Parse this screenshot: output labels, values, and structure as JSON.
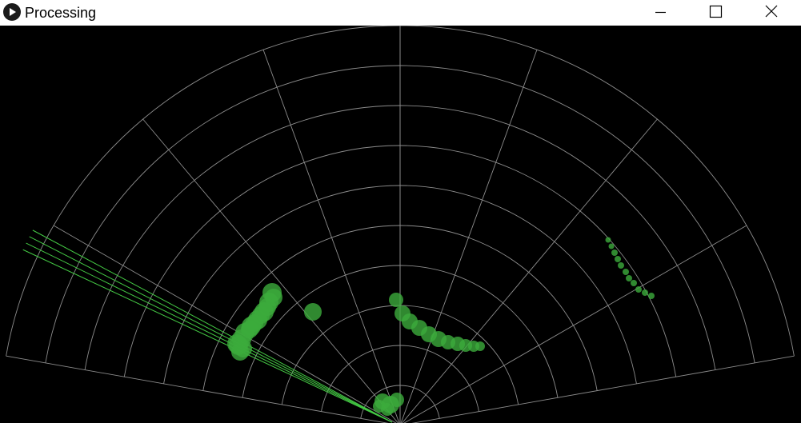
{
  "window": {
    "title": "Processing",
    "app_icon": "play-icon",
    "controls": [
      "minimize-icon",
      "maximize-icon",
      "close-icon"
    ]
  },
  "radar": {
    "background": "#000000",
    "grid_color": "#8c8c8c",
    "sweep_color": "#44c944",
    "blip_color": "#3cab3c",
    "sweep_angles_deg": [
      152,
      153,
      154,
      155
    ]
  }
}
